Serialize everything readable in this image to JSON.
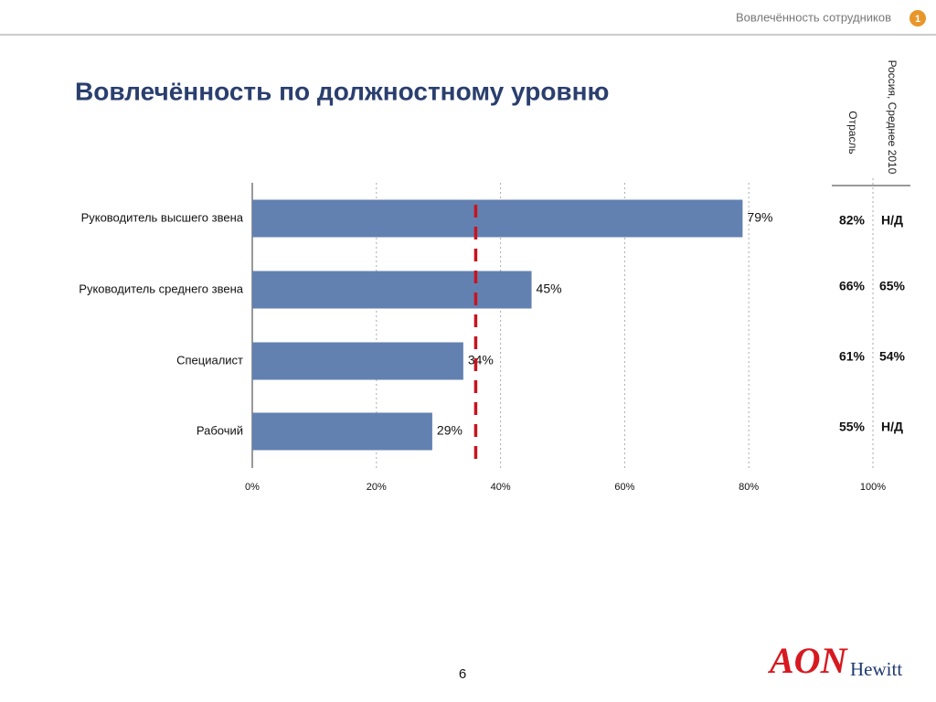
{
  "header": {
    "section": "Вовлечённость сотрудников",
    "badge": "1"
  },
  "chart_data": {
    "type": "bar",
    "orientation": "horizontal",
    "title": "Вовлечённость по должностному уровню",
    "categories": [
      "Руководитель высшего звена",
      "Руководитель среднего звена",
      "Специалист",
      "Рабочий"
    ],
    "values": [
      79,
      45,
      34,
      29
    ],
    "value_labels": [
      "79%",
      "45%",
      "34%",
      "29%"
    ],
    "color": "#6281b1",
    "xlim": [
      0,
      100
    ],
    "xticks": [
      {
        "value": 0,
        "label": "0%"
      },
      {
        "value": 20,
        "label": "20%"
      },
      {
        "value": 40,
        "label": "40%"
      },
      {
        "value": 60,
        "label": "60%"
      },
      {
        "value": 80,
        "label": "80%"
      },
      {
        "value": 100,
        "label": "100%"
      }
    ],
    "grid": true,
    "reference_line": 36,
    "reference_color": "#c8141e"
  },
  "side_table": {
    "columns": [
      "Отрасль",
      "Россия, Среднее 2010"
    ],
    "rows": [
      [
        "82%",
        "Н/Д"
      ],
      [
        "66%",
        "65%"
      ],
      [
        "61%",
        "54%"
      ],
      [
        "55%",
        "Н/Д"
      ]
    ]
  },
  "footer": {
    "page": "6",
    "logo_main": "AON",
    "logo_sub": "Hewitt"
  }
}
